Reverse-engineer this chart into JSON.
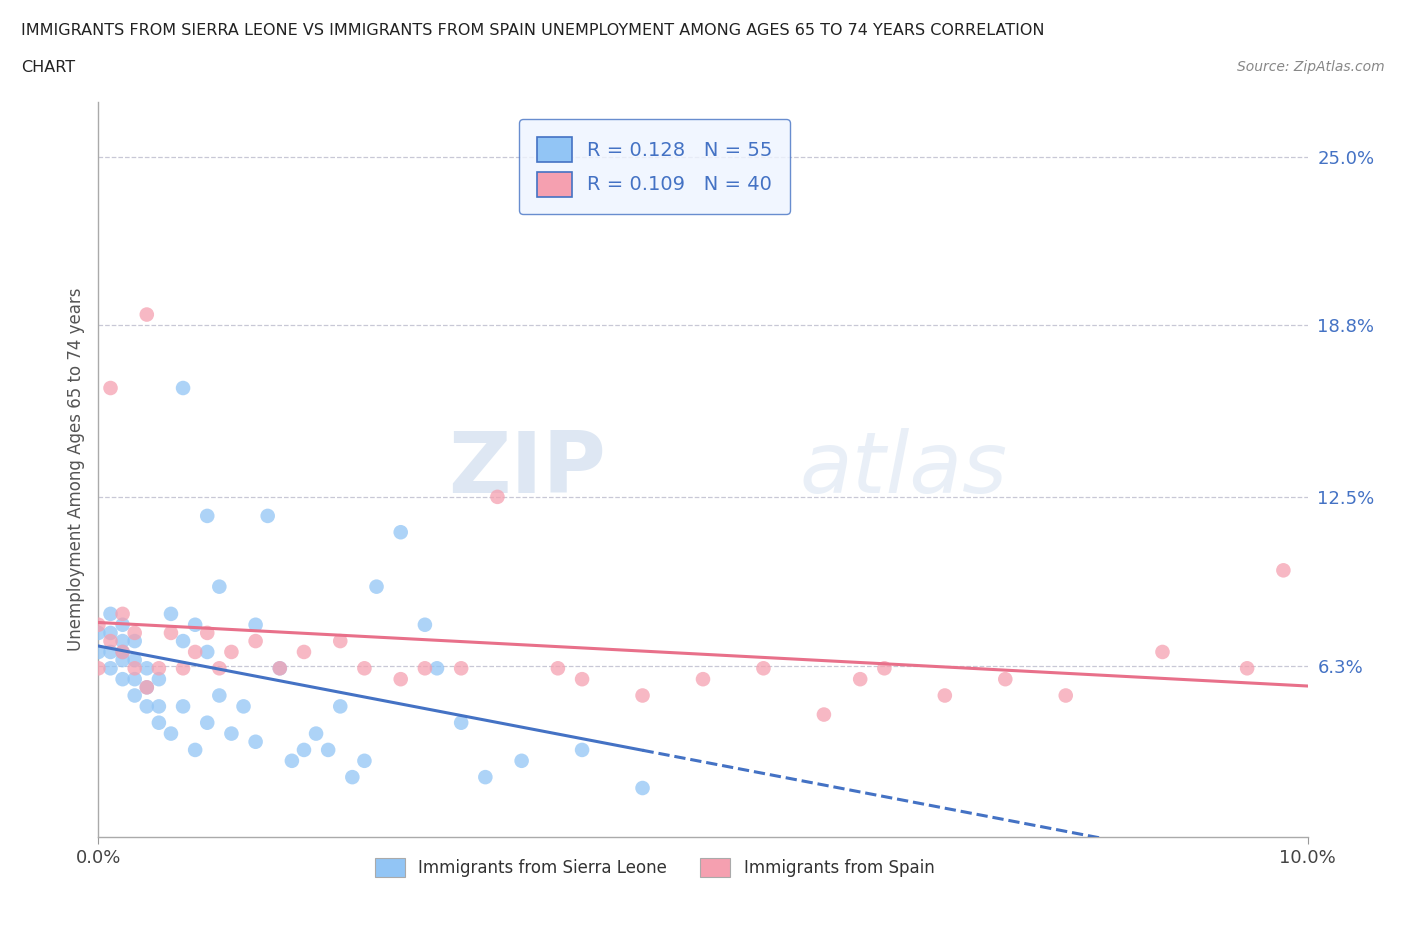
{
  "title_line1": "IMMIGRANTS FROM SIERRA LEONE VS IMMIGRANTS FROM SPAIN UNEMPLOYMENT AMONG AGES 65 TO 74 YEARS CORRELATION",
  "title_line2": "CHART",
  "source": "Source: ZipAtlas.com",
  "ylabel": "Unemployment Among Ages 65 to 74 years",
  "xlim": [
    0.0,
    0.1
  ],
  "ylim": [
    0.0,
    0.27
  ],
  "ytick_right_values": [
    0.063,
    0.125,
    0.188,
    0.25
  ],
  "ytick_right_labels": [
    "6.3%",
    "12.5%",
    "18.8%",
    "25.0%"
  ],
  "R_sierra": 0.128,
  "N_sierra": 55,
  "R_spain": 0.109,
  "N_spain": 40,
  "color_sierra": "#92C5F5",
  "color_spain": "#F5A0B0",
  "color_text_blue": "#4472C4",
  "color_trend_sierra": "#4472C4",
  "color_trend_spain": "#E8708A",
  "sierra_leone_x": [
    0.0,
    0.0,
    0.001,
    0.001,
    0.001,
    0.001,
    0.002,
    0.002,
    0.002,
    0.002,
    0.002,
    0.003,
    0.003,
    0.003,
    0.003,
    0.004,
    0.004,
    0.004,
    0.005,
    0.005,
    0.005,
    0.006,
    0.006,
    0.007,
    0.007,
    0.007,
    0.008,
    0.008,
    0.009,
    0.009,
    0.009,
    0.01,
    0.01,
    0.011,
    0.012,
    0.013,
    0.013,
    0.014,
    0.015,
    0.016,
    0.017,
    0.018,
    0.019,
    0.02,
    0.021,
    0.022,
    0.023,
    0.025,
    0.027,
    0.028,
    0.03,
    0.032,
    0.035,
    0.04,
    0.045
  ],
  "sierra_leone_y": [
    0.068,
    0.075,
    0.062,
    0.068,
    0.075,
    0.082,
    0.058,
    0.065,
    0.072,
    0.068,
    0.078,
    0.052,
    0.058,
    0.065,
    0.072,
    0.048,
    0.055,
    0.062,
    0.042,
    0.048,
    0.058,
    0.038,
    0.082,
    0.048,
    0.072,
    0.165,
    0.032,
    0.078,
    0.042,
    0.118,
    0.068,
    0.052,
    0.092,
    0.038,
    0.048,
    0.035,
    0.078,
    0.118,
    0.062,
    0.028,
    0.032,
    0.038,
    0.032,
    0.048,
    0.022,
    0.028,
    0.092,
    0.112,
    0.078,
    0.062,
    0.042,
    0.022,
    0.028,
    0.032,
    0.018
  ],
  "spain_x": [
    0.0,
    0.0,
    0.001,
    0.001,
    0.002,
    0.002,
    0.003,
    0.003,
    0.004,
    0.004,
    0.005,
    0.006,
    0.007,
    0.008,
    0.009,
    0.01,
    0.011,
    0.013,
    0.015,
    0.017,
    0.02,
    0.022,
    0.025,
    0.027,
    0.03,
    0.033,
    0.038,
    0.04,
    0.045,
    0.05,
    0.055,
    0.06,
    0.063,
    0.065,
    0.07,
    0.075,
    0.08,
    0.088,
    0.095,
    0.098
  ],
  "spain_y": [
    0.062,
    0.078,
    0.072,
    0.165,
    0.068,
    0.082,
    0.062,
    0.075,
    0.055,
    0.192,
    0.062,
    0.075,
    0.062,
    0.068,
    0.075,
    0.062,
    0.068,
    0.072,
    0.062,
    0.068,
    0.072,
    0.062,
    0.058,
    0.062,
    0.062,
    0.125,
    0.062,
    0.058,
    0.052,
    0.058,
    0.062,
    0.045,
    0.058,
    0.062,
    0.052,
    0.058,
    0.052,
    0.068,
    0.062,
    0.098
  ],
  "watermark_zip": "ZIP",
  "watermark_atlas": "atlas",
  "legend_box_color": "#EEF4FF",
  "legend_border_color": "#4472C4"
}
